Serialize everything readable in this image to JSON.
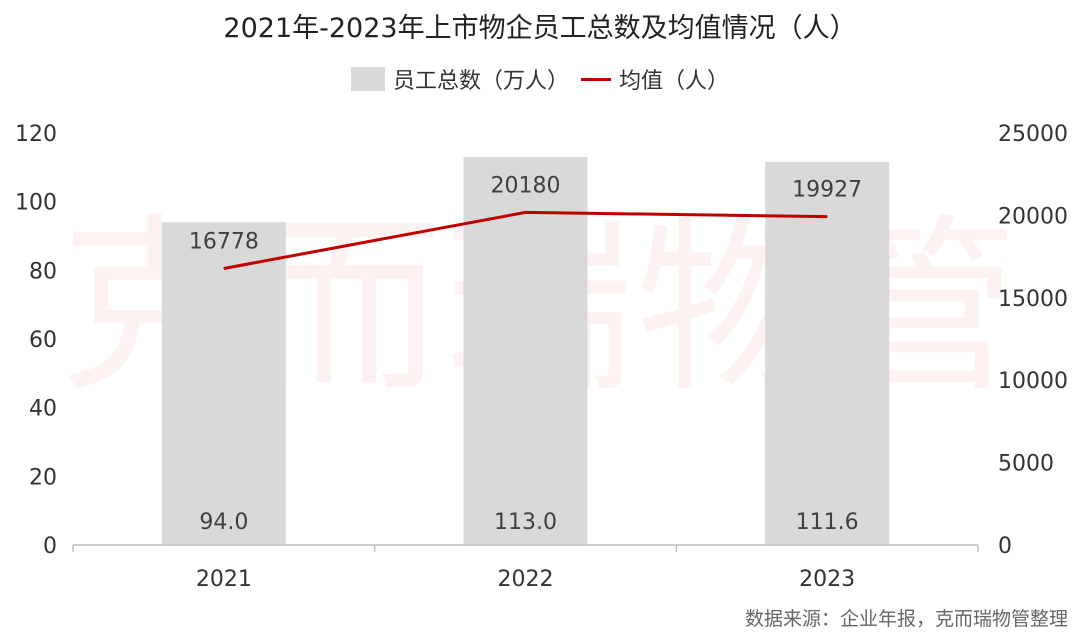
{
  "chart_data": {
    "type": "bar",
    "title": "2021年-2023年上市物企员工总数及均值情况（人）",
    "categories": [
      "2021",
      "2022",
      "2023"
    ],
    "series": [
      {
        "name": "员工总数（万人）",
        "type": "bar",
        "axis": "left",
        "color": "#d9d9d9",
        "values": [
          94.0,
          113.0,
          111.6
        ],
        "labels": [
          "94.0",
          "113.0",
          "111.6"
        ]
      },
      {
        "name": "均值（人）",
        "type": "line",
        "axis": "right",
        "color": "#c00000",
        "values": [
          16778,
          20180,
          19927
        ],
        "labels": [
          "16778",
          "20180",
          "19927"
        ]
      }
    ],
    "y_left": {
      "lim": [
        0,
        120
      ],
      "ticks": [
        "0",
        "20",
        "40",
        "60",
        "80",
        "100",
        "120"
      ]
    },
    "y_right": {
      "lim": [
        0,
        25000
      ],
      "ticks": [
        "0",
        "5000",
        "10000",
        "15000",
        "20000",
        "25000"
      ]
    },
    "legend_position": "top",
    "grid": false
  },
  "watermark": "克而瑞物管",
  "source": "数据来源：企业年报，克而瑞物管整理"
}
